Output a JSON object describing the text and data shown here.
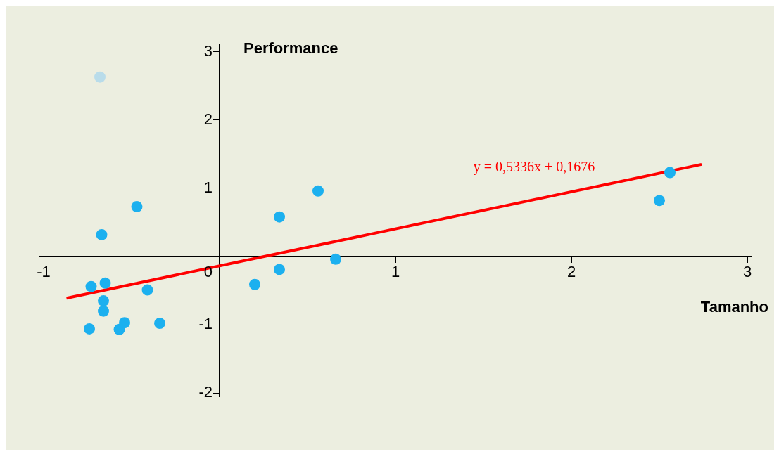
{
  "chart_data": {
    "type": "scatter",
    "xlabel": "Tamanho",
    "ylabel": "Performance",
    "xlim": [
      -1.02,
      3.02
    ],
    "ylim": [
      -2.05,
      3.1
    ],
    "xticks": [
      -1,
      0,
      1,
      2,
      3
    ],
    "yticks": [
      -2,
      -1,
      {
        "value": 0,
        "label": null
      },
      1,
      2,
      3
    ],
    "grid": false,
    "legend": false,
    "marker": "circle",
    "series": [
      {
        "color": "#1cb0ef",
        "x": [
          -0.47,
          -0.67,
          -0.73,
          -0.65,
          -0.66,
          -0.66,
          -0.74,
          -0.57,
          -0.54,
          -0.41,
          -0.34,
          0.2,
          0.34,
          0.34,
          0.56,
          0.66,
          2.5,
          2.56
        ],
        "values": [
          0.73,
          0.32,
          -0.44,
          -0.39,
          -0.65,
          -0.8,
          -1.06,
          -1.07,
          -0.97,
          -0.49,
          -0.98,
          -0.41,
          0.58,
          -0.19,
          0.96,
          -0.04,
          0.82,
          1.23
        ]
      },
      {
        "color": "#b9dcea",
        "x": [
          -0.68
        ],
        "values": [
          2.63
        ]
      },
      {
        "type": "line",
        "color": "#ff0000",
        "marker": "none",
        "x": [
          -0.87,
          2.74
        ],
        "values": [
          -0.61,
          1.35
        ]
      }
    ],
    "annotations": [
      "y = 0,5336x + 0,1676"
    ]
  }
}
